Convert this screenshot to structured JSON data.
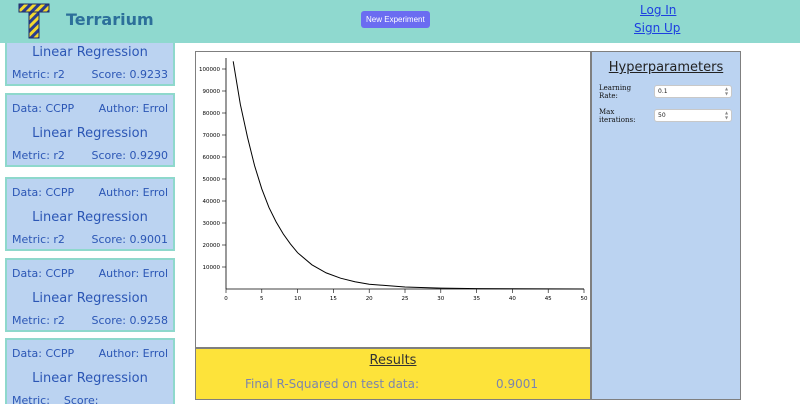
{
  "header": {
    "brand": "Terrarium",
    "logo_icon": "t-logo-icon",
    "new_experiment": "New Experiment",
    "login": "Log In",
    "signup": "Sign Up"
  },
  "sidebar": {
    "cards": [
      {
        "data_label": "",
        "author_label": "",
        "model": "Linear Regression",
        "metric": "Metric: r2",
        "score": "Score: 0.9233"
      },
      {
        "data_label": "Data: CCPP",
        "author_label": "Author: Errol",
        "model": "Linear Regression",
        "metric": "Metric: r2",
        "score": "Score: 0.9290"
      },
      {
        "data_label": "Data: CCPP",
        "author_label": "Author: Errol",
        "model": "Linear Regression",
        "metric": "Metric: r2",
        "score": "Score: 0.9001"
      },
      {
        "data_label": "Data: CCPP",
        "author_label": "Author: Errol",
        "model": "Linear Regression",
        "metric": "Metric: r2",
        "score": "Score: 0.9258"
      },
      {
        "data_label": "Data: CCPP",
        "author_label": "Author: Errol",
        "model": "Linear Regression",
        "metric": "Metric:",
        "score": "Score:"
      }
    ]
  },
  "results": {
    "title": "Results",
    "label": "Final R-Squared on test data:",
    "value": "0.9001"
  },
  "hyperparameters": {
    "title": "Hyperparameters",
    "learning_rate_label": [
      "Learning",
      "Rate:"
    ],
    "learning_rate_value": "0.1",
    "max_iter_label": [
      "Max",
      "iterations:"
    ],
    "max_iter_value": "50"
  },
  "chart_data": {
    "type": "line",
    "xlim": [
      0,
      50
    ],
    "ylim": [
      0,
      105000
    ],
    "x_ticks": [
      0,
      5,
      10,
      15,
      20,
      25,
      30,
      35,
      40,
      45,
      50
    ],
    "y_ticks": [
      10000,
      20000,
      30000,
      40000,
      50000,
      60000,
      70000,
      80000,
      90000,
      100000
    ],
    "series": [
      {
        "x": [
          1,
          2,
          3,
          4,
          5,
          6,
          7,
          8,
          9,
          10,
          12,
          14,
          16,
          18,
          20,
          25,
          30,
          35,
          40,
          45,
          50
        ],
        "y": [
          103500,
          84000,
          69000,
          56000,
          45500,
          37000,
          30500,
          25000,
          20500,
          16500,
          11000,
          7300,
          4900,
          3300,
          2200,
          900,
          400,
          200,
          100,
          50,
          20
        ],
        "color": "#000000"
      }
    ],
    "grid": false
  },
  "colors": {
    "header": "#8fd9cf",
    "card": "#bbd3f1",
    "card_border": "#8ed8cc",
    "results": "#fde33a",
    "button": "#6b6cf1",
    "link": "#1d3fe0"
  }
}
